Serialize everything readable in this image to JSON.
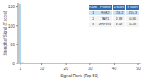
{
  "chart_data": {
    "type": "bar",
    "x": [
      1,
      2,
      3,
      4,
      5,
      6,
      7,
      8,
      9,
      10,
      11,
      12,
      13,
      14,
      15,
      16,
      17,
      18,
      19,
      20,
      21,
      22,
      23,
      24,
      25,
      26,
      27,
      28,
      29,
      30,
      31,
      32,
      33,
      34,
      35,
      36,
      37,
      38,
      39,
      40,
      41,
      42,
      43,
      44,
      45,
      46,
      47,
      48,
      49,
      50
    ],
    "values": [
      158.2,
      2.9,
      2.0,
      1.7,
      1.6,
      1.5,
      1.5,
      1.4,
      1.4,
      1.3,
      1.3,
      1.3,
      1.2,
      1.2,
      1.2,
      1.1,
      1.1,
      1.1,
      1.1,
      1.0,
      1.0,
      1.0,
      1.0,
      1.0,
      0.9,
      0.9,
      0.9,
      0.9,
      0.9,
      0.8,
      0.8,
      0.8,
      0.8,
      0.8,
      0.8,
      0.7,
      0.7,
      0.7,
      0.7,
      0.7,
      0.7,
      0.6,
      0.6,
      0.6,
      0.6,
      0.6,
      0.6,
      0.5,
      0.5,
      0.5
    ],
    "color": "#5aa9e0",
    "xlim": [
      0,
      51
    ],
    "xticks": [
      1,
      10,
      20,
      30,
      40,
      50
    ],
    "ylim": [
      0,
      160
    ],
    "yticks": [
      0,
      50,
      100,
      150
    ],
    "x_label": "Signal Rank (Top 50)",
    "y_label": "Strength of Signal (Z score)",
    "grid": false,
    "table": {
      "columns": [
        "Rank",
        "Protein",
        "Z score",
        "S score"
      ],
      "rows": [
        [
          "1",
          "FGF2",
          "158.2",
          "155.3"
        ],
        [
          "2",
          "TAP1",
          "2.88",
          "0.86"
        ],
        [
          "3",
          "ZNF696",
          "2.02",
          "0.43"
        ]
      ]
    }
  }
}
